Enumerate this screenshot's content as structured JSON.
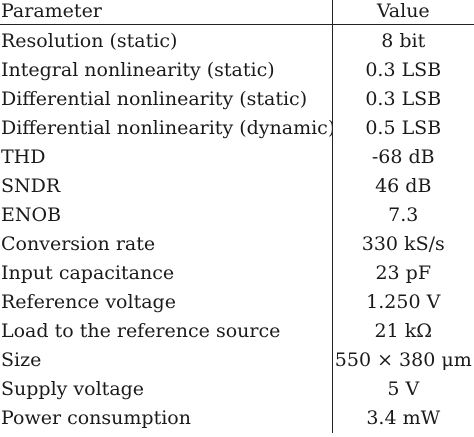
{
  "table": {
    "headers": {
      "parameter": "Parameter",
      "value": "Value"
    },
    "rows": [
      {
        "parameter": "Resolution (static)",
        "value": "8 bit"
      },
      {
        "parameter": "Integral nonlinearity (static)",
        "value": "0.3 LSB"
      },
      {
        "parameter": "Differential nonlinearity (static)",
        "value": "0.3 LSB"
      },
      {
        "parameter": "Differential nonlinearity (dynamic)",
        "value": "0.5 LSB"
      },
      {
        "parameter": "THD",
        "value": "-68 dB"
      },
      {
        "parameter": "SNDR",
        "value": "46 dB"
      },
      {
        "parameter": "ENOB",
        "value": "7.3"
      },
      {
        "parameter": "Conversion rate",
        "value": "330 kS/s"
      },
      {
        "parameter": "Input capacitance",
        "value": "23 pF"
      },
      {
        "parameter": "Reference voltage",
        "value": "1.250 V"
      },
      {
        "parameter": "Load to the reference source",
        "value": "21 kΩ"
      },
      {
        "parameter": "Size",
        "value": "550 × 380 μm"
      },
      {
        "parameter": "Supply voltage",
        "value": "5 V"
      },
      {
        "parameter": "Power consumption",
        "value": "3.4 mW"
      }
    ]
  }
}
